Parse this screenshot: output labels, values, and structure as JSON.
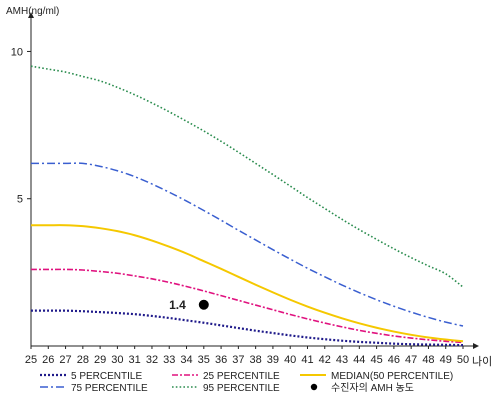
{
  "chart_data": {
    "type": "line",
    "ylabel": "AMH(ng/ml)",
    "xlabel": "나이",
    "x": [
      25,
      26,
      27,
      28,
      29,
      30,
      31,
      32,
      33,
      34,
      35,
      36,
      37,
      38,
      39,
      40,
      41,
      42,
      43,
      44,
      45,
      46,
      47,
      48,
      49,
      50
    ],
    "x_tick_labels": [
      "25",
      "26",
      "27",
      "28",
      "29",
      "30",
      "31",
      "32",
      "33",
      "34",
      "35",
      "36",
      "37",
      "38",
      "39",
      "40",
      "41",
      "42",
      "43",
      "44",
      "45",
      "46",
      "47",
      "48",
      "49",
      "50"
    ],
    "ylim": [
      0,
      11
    ],
    "xlim": [
      25,
      50
    ],
    "y_ticks": [
      5,
      10
    ],
    "y_tick_labels": [
      "5",
      "10"
    ],
    "grid": false,
    "legend_position": "bottom",
    "series": [
      {
        "name": "5 PERCENTILE",
        "color": "#1f1a8a",
        "dash": "2,2",
        "width": 2.2,
        "values": [
          1.2,
          1.2,
          1.2,
          1.18,
          1.15,
          1.12,
          1.08,
          1.02,
          0.95,
          0.87,
          0.79,
          0.7,
          0.61,
          0.52,
          0.44,
          0.36,
          0.29,
          0.23,
          0.18,
          0.14,
          0.11,
          0.08,
          0.06,
          0.05,
          0.04,
          0.03
        ]
      },
      {
        "name": "75 PERCENTILE",
        "color": "#3a5fd0",
        "dash": "8,3,2,3",
        "width": 1.5,
        "values": [
          6.2,
          6.2,
          6.2,
          6.2,
          6.1,
          5.95,
          5.75,
          5.5,
          5.22,
          4.92,
          4.6,
          4.27,
          3.93,
          3.6,
          3.27,
          2.95,
          2.64,
          2.35,
          2.07,
          1.81,
          1.57,
          1.35,
          1.15,
          0.97,
          0.81,
          0.68
        ]
      },
      {
        "name": "25 PERCENTILE",
        "color": "#e0127f",
        "dash": "6,2,2,2",
        "width": 1.6,
        "values": [
          2.6,
          2.6,
          2.6,
          2.58,
          2.53,
          2.47,
          2.38,
          2.28,
          2.16,
          2.02,
          1.87,
          1.71,
          1.55,
          1.39,
          1.23,
          1.07,
          0.92,
          0.78,
          0.65,
          0.53,
          0.43,
          0.34,
          0.27,
          0.21,
          0.16,
          0.12
        ]
      },
      {
        "name": "95 PERCENTILE",
        "color": "#2a8c4e",
        "dash": "1.6,2.2",
        "width": 1.6,
        "values": [
          9.5,
          9.4,
          9.3,
          9.15,
          9.0,
          8.78,
          8.53,
          8.25,
          7.95,
          7.63,
          7.3,
          6.95,
          6.58,
          6.2,
          5.82,
          5.43,
          5.04,
          4.67,
          4.3,
          3.95,
          3.62,
          3.3,
          3.0,
          2.72,
          2.45,
          2.0
        ]
      },
      {
        "name": "MEDIAN(50 PERCENTILE)",
        "color": "#f5c800",
        "dash": "",
        "width": 2,
        "values": [
          4.1,
          4.1,
          4.1,
          4.07,
          4.0,
          3.9,
          3.76,
          3.58,
          3.37,
          3.14,
          2.88,
          2.62,
          2.35,
          2.08,
          1.82,
          1.57,
          1.34,
          1.13,
          0.94,
          0.77,
          0.62,
          0.49,
          0.38,
          0.29,
          0.22,
          0.16
        ]
      }
    ],
    "highlight_point": {
      "name": "수진자의 AMH 농도",
      "x": 35,
      "y": 1.4,
      "label": "1.4",
      "color": "#000000"
    }
  }
}
